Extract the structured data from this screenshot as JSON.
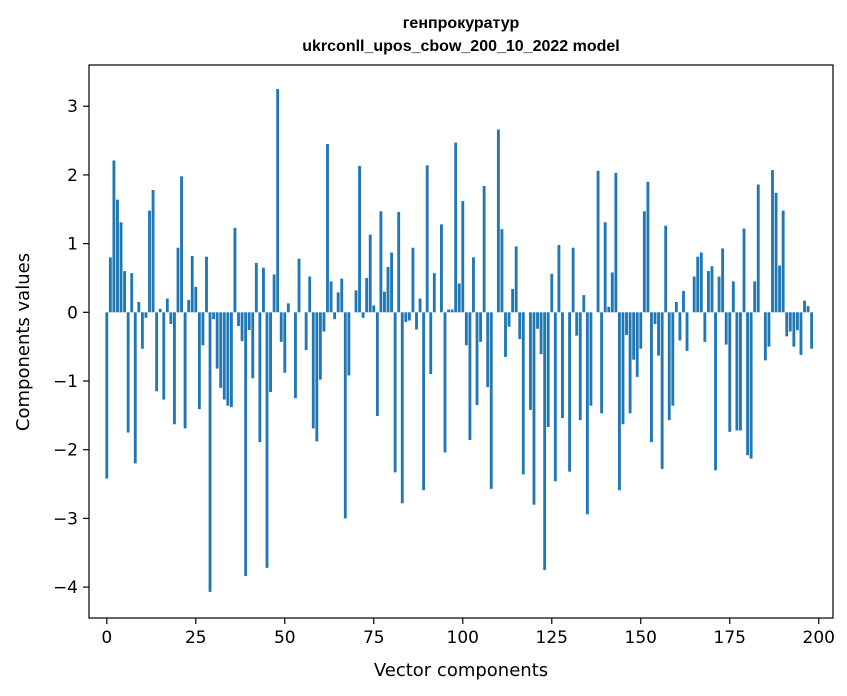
{
  "chart_data": {
    "type": "bar",
    "title": "генпрокуратур",
    "subtitle": "ukrconll_upos_cbow_200_10_2022 model",
    "xlabel": "Vector components",
    "ylabel": "Components values",
    "xlim": [
      -5,
      204
    ],
    "ylim": [
      -4.45,
      3.6
    ],
    "xticks": [
      0,
      25,
      50,
      75,
      100,
      125,
      150,
      175,
      200
    ],
    "xtick_labels": [
      "0",
      "25",
      "50",
      "75",
      "100",
      "125",
      "150",
      "175",
      "200"
    ],
    "yticks": [
      -4,
      -3,
      -2,
      -1,
      0,
      1,
      2,
      3
    ],
    "ytick_labels": [
      "−4",
      "−3",
      "−2",
      "−1",
      "0",
      "1",
      "2",
      "3"
    ],
    "grid": false,
    "legend": "none",
    "bar_color": "#1f77b4",
    "values": [
      -2.42,
      0.8,
      2.21,
      1.64,
      1.31,
      0.6,
      -1.75,
      0.57,
      -2.2,
      0.15,
      -0.53,
      -0.08,
      1.48,
      1.78,
      -1.15,
      0.05,
      -1.27,
      0.2,
      -0.17,
      -1.63,
      0.94,
      1.98,
      -1.69,
      0.18,
      0.82,
      0.37,
      -1.41,
      -0.48,
      0.81,
      -4.07,
      -0.1,
      -0.82,
      -1.1,
      -1.27,
      -1.36,
      -1.38,
      1.23,
      -0.2,
      -0.42,
      -3.84,
      -0.26,
      -0.96,
      0.72,
      -1.89,
      0.65,
      -3.72,
      -1.16,
      0.55,
      3.25,
      -0.43,
      -0.88,
      0.13,
      0.0,
      -1.25,
      0.78,
      0.0,
      -0.55,
      0.52,
      -1.69,
      -1.88,
      -0.98,
      -0.28,
      2.45,
      0.45,
      -0.1,
      0.29,
      0.49,
      -3.0,
      -0.92,
      0.0,
      0.32,
      2.13,
      -0.08,
      0.5,
      1.13,
      0.1,
      -1.51,
      1.47,
      0.3,
      0.66,
      0.87,
      -2.33,
      1.46,
      -2.78,
      -0.14,
      -0.12,
      0.94,
      -0.25,
      0.2,
      -2.59,
      2.14,
      -0.9,
      0.57,
      0.0,
      1.28,
      -2.04,
      0.04,
      0.04,
      2.47,
      0.42,
      1.62,
      -0.48,
      -1.86,
      0.8,
      -1.35,
      -0.43,
      1.84,
      -1.09,
      -2.57,
      0.0,
      2.66,
      1.21,
      -0.65,
      -0.21,
      0.34,
      0.96,
      -0.39,
      -2.36,
      0.0,
      -1.42,
      -2.8,
      -0.24,
      -0.61,
      -3.75,
      -1.67,
      0.56,
      -2.46,
      0.98,
      -1.54,
      0.0,
      -2.32,
      0.94,
      -0.34,
      -1.57,
      0.25,
      -2.94,
      -1.36,
      0.0,
      2.06,
      -1.47,
      1.31,
      0.08,
      0.58,
      2.03,
      -2.59,
      -1.63,
      -0.33,
      -1.47,
      -0.69,
      -0.94,
      -0.53,
      1.47,
      1.9,
      -1.89,
      -0.17,
      -0.63,
      -2.28,
      1.26,
      -1.57,
      -1.36,
      0.15,
      -0.41,
      0.31,
      -0.56,
      0.0,
      0.52,
      0.81,
      0.87,
      -0.43,
      0.6,
      0.67,
      -2.3,
      0.52,
      0.93,
      -0.47,
      -1.74,
      0.45,
      -1.72,
      -1.72,
      1.22,
      -2.08,
      -2.13,
      0.45,
      1.86,
      0.0,
      -0.7,
      -0.5,
      2.07,
      1.74,
      0.68,
      1.48,
      -0.35,
      -0.28,
      -0.5,
      -0.26,
      -0.62,
      0.17,
      0.09,
      -0.53
    ]
  }
}
